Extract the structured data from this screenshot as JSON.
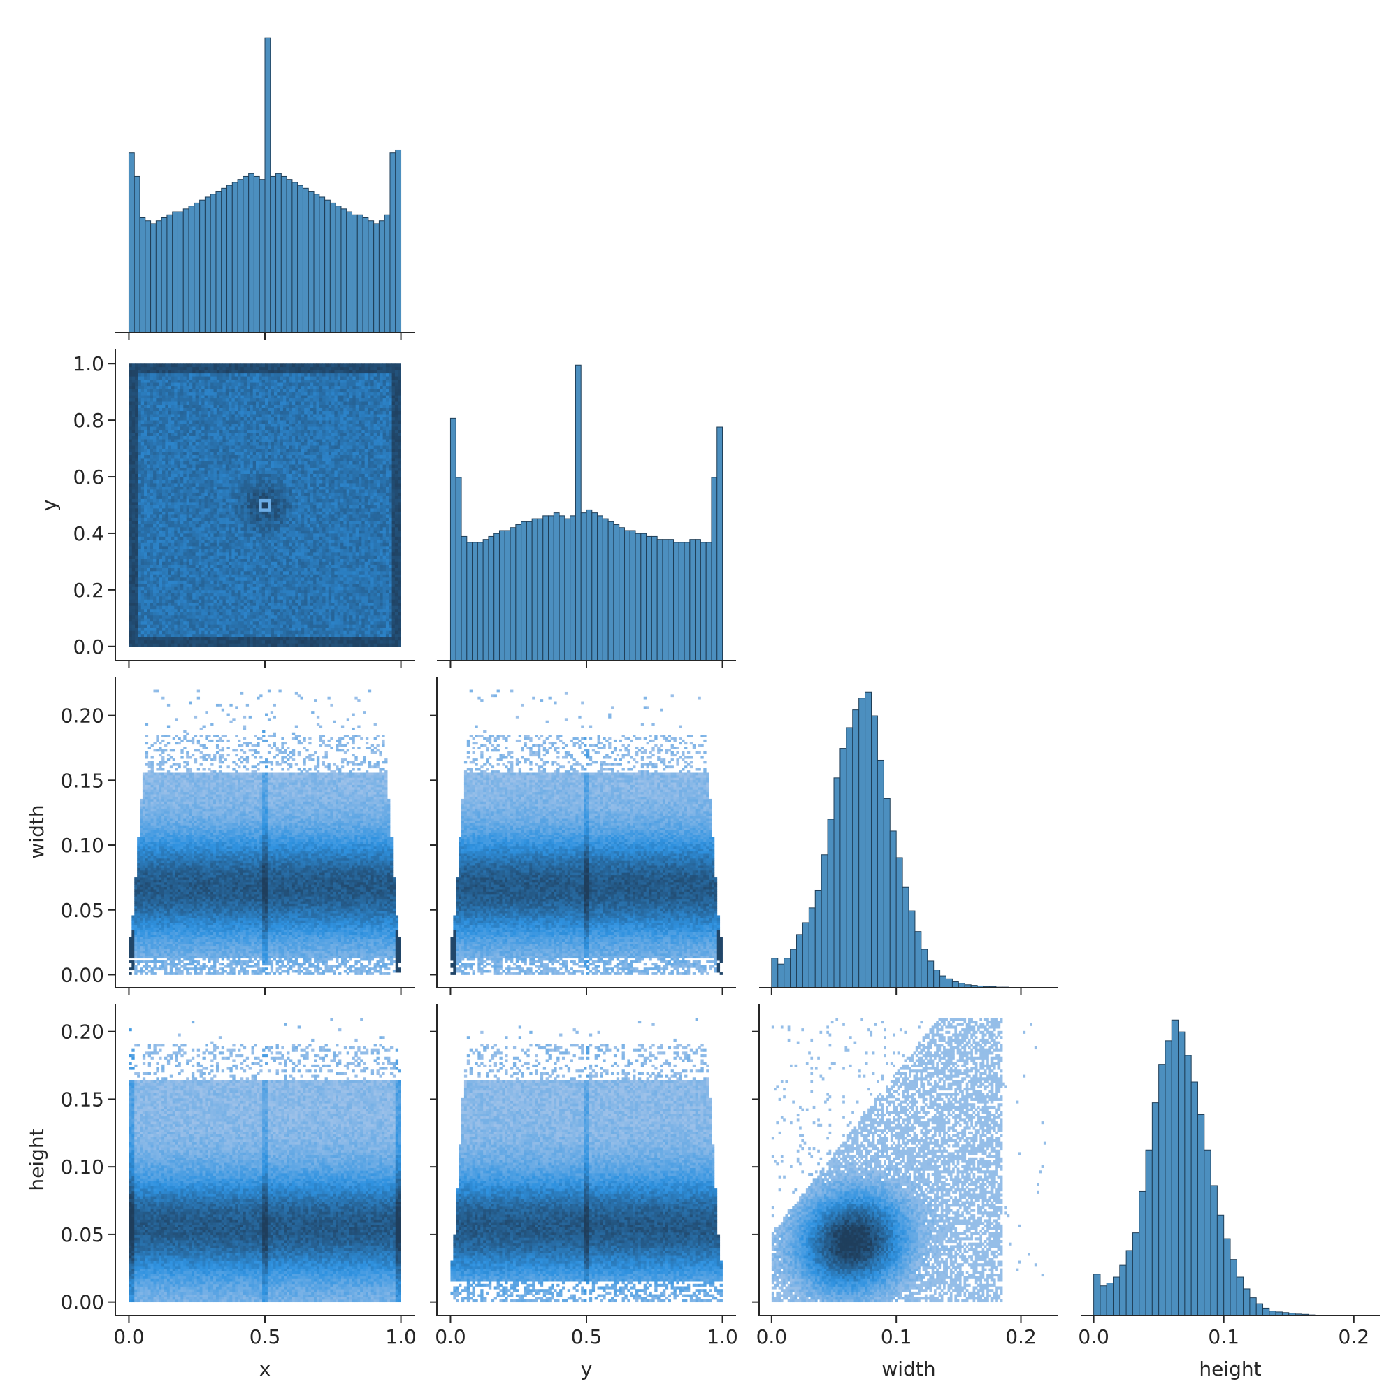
{
  "colors": {
    "bar_fill": "#4c8fbf",
    "bar_edge": "#1f3e57",
    "heat_light": "#a9c6ea",
    "heat_mid": "#2f92e0",
    "heat_dark": "#1f3e5c"
  },
  "chart_data": [
    {
      "id": "x-hist",
      "type": "bar",
      "row": 0,
      "col": 0,
      "variable": "x",
      "xlim": [
        -0.05,
        1.05
      ],
      "bins": [
        0.0,
        0.02,
        0.04,
        0.06,
        0.08,
        0.1,
        0.12,
        0.14,
        0.16,
        0.18,
        0.2,
        0.22,
        0.24,
        0.26,
        0.28,
        0.3,
        0.32,
        0.34,
        0.36,
        0.38,
        0.4,
        0.42,
        0.44,
        0.46,
        0.48,
        0.5,
        0.52,
        0.54,
        0.56,
        0.58,
        0.6,
        0.62,
        0.64,
        0.66,
        0.68,
        0.7,
        0.72,
        0.74,
        0.76,
        0.78,
        0.8,
        0.82,
        0.84,
        0.86,
        0.88,
        0.9,
        0.92,
        0.94,
        0.96,
        0.98,
        1.0
      ],
      "counts": [
        0.61,
        0.53,
        0.39,
        0.38,
        0.37,
        0.38,
        0.39,
        0.4,
        0.41,
        0.41,
        0.42,
        0.43,
        0.44,
        0.45,
        0.46,
        0.47,
        0.48,
        0.49,
        0.5,
        0.51,
        0.52,
        0.53,
        0.54,
        0.53,
        0.52,
        1.0,
        0.53,
        0.54,
        0.53,
        0.52,
        0.51,
        0.5,
        0.49,
        0.48,
        0.47,
        0.46,
        0.45,
        0.44,
        0.43,
        0.42,
        0.41,
        0.4,
        0.4,
        0.39,
        0.38,
        0.37,
        0.38,
        0.4,
        0.61,
        0.62
      ]
    },
    {
      "id": "y-hist",
      "type": "bar",
      "row": 1,
      "col": 1,
      "variable": "y",
      "xlim": [
        -0.05,
        1.05
      ],
      "bins": [
        0.0,
        0.02,
        0.04,
        0.06,
        0.08,
        0.1,
        0.12,
        0.14,
        0.16,
        0.18,
        0.2,
        0.22,
        0.24,
        0.26,
        0.28,
        0.3,
        0.32,
        0.34,
        0.36,
        0.38,
        0.4,
        0.42,
        0.44,
        0.46,
        0.48,
        0.5,
        0.52,
        0.54,
        0.56,
        0.58,
        0.6,
        0.62,
        0.64,
        0.66,
        0.68,
        0.7,
        0.72,
        0.74,
        0.76,
        0.78,
        0.8,
        0.82,
        0.84,
        0.86,
        0.88,
        0.9,
        0.92,
        0.94,
        0.96,
        0.98,
        1.0
      ],
      "counts": [
        0.82,
        0.62,
        0.42,
        0.4,
        0.4,
        0.4,
        0.41,
        0.42,
        0.43,
        0.44,
        0.44,
        0.45,
        0.46,
        0.47,
        0.47,
        0.48,
        0.48,
        0.49,
        0.49,
        0.5,
        0.49,
        0.48,
        0.49,
        1.0,
        0.5,
        0.51,
        0.5,
        0.49,
        0.48,
        0.47,
        0.46,
        0.45,
        0.44,
        0.44,
        0.43,
        0.43,
        0.42,
        0.42,
        0.41,
        0.41,
        0.41,
        0.4,
        0.4,
        0.4,
        0.41,
        0.41,
        0.4,
        0.4,
        0.62,
        0.79
      ]
    },
    {
      "id": "width-hist",
      "type": "bar",
      "row": 2,
      "col": 2,
      "variable": "width",
      "xlim": [
        -0.01,
        0.23
      ],
      "bins": [
        0.0,
        0.005,
        0.01,
        0.015,
        0.02,
        0.025,
        0.03,
        0.035,
        0.04,
        0.045,
        0.05,
        0.055,
        0.06,
        0.065,
        0.07,
        0.075,
        0.08,
        0.085,
        0.09,
        0.095,
        0.1,
        0.105,
        0.11,
        0.115,
        0.12,
        0.125,
        0.13,
        0.135,
        0.14,
        0.145,
        0.15,
        0.155,
        0.16,
        0.165,
        0.17,
        0.175,
        0.18,
        0.185,
        0.19
      ],
      "counts": [
        0.1,
        0.08,
        0.1,
        0.13,
        0.18,
        0.22,
        0.27,
        0.33,
        0.45,
        0.57,
        0.71,
        0.81,
        0.88,
        0.94,
        0.98,
        1.0,
        0.92,
        0.77,
        0.64,
        0.53,
        0.44,
        0.34,
        0.26,
        0.19,
        0.13,
        0.09,
        0.06,
        0.04,
        0.03,
        0.02,
        0.015,
        0.01,
        0.008,
        0.006,
        0.004,
        0.004,
        0.002,
        0.002,
        0.001
      ]
    },
    {
      "id": "height-hist",
      "type": "bar",
      "row": 3,
      "col": 3,
      "variable": "height",
      "xlim": [
        -0.01,
        0.22
      ],
      "bins": [
        0.0,
        0.005,
        0.01,
        0.015,
        0.02,
        0.025,
        0.03,
        0.035,
        0.04,
        0.045,
        0.05,
        0.055,
        0.06,
        0.065,
        0.07,
        0.075,
        0.08,
        0.085,
        0.09,
        0.095,
        0.1,
        0.105,
        0.11,
        0.115,
        0.12,
        0.125,
        0.13,
        0.135,
        0.14,
        0.145,
        0.15,
        0.155,
        0.16,
        0.165
      ],
      "counts": [
        0.14,
        0.1,
        0.11,
        0.13,
        0.17,
        0.22,
        0.28,
        0.42,
        0.56,
        0.72,
        0.85,
        0.93,
        1.0,
        0.96,
        0.88,
        0.79,
        0.68,
        0.56,
        0.44,
        0.34,
        0.26,
        0.19,
        0.13,
        0.09,
        0.06,
        0.04,
        0.025,
        0.015,
        0.012,
        0.01,
        0.008,
        0.005,
        0.004,
        0.002
      ]
    },
    {
      "id": "x-vs-y",
      "type": "heatmap",
      "row": 1,
      "col": 0,
      "x": "x",
      "y": "y",
      "xlim": [
        -0.05,
        1.05
      ],
      "ylim": [
        -0.05,
        1.05
      ]
    },
    {
      "id": "x-vs-width",
      "type": "heatmap",
      "row": 2,
      "col": 0,
      "x": "x",
      "y": "width",
      "xlim": [
        -0.05,
        1.05
      ],
      "ylim": [
        -0.01,
        0.23
      ]
    },
    {
      "id": "y-vs-width",
      "type": "heatmap",
      "row": 2,
      "col": 1,
      "x": "y",
      "y": "width",
      "xlim": [
        -0.05,
        1.05
      ],
      "ylim": [
        -0.01,
        0.23
      ]
    },
    {
      "id": "x-vs-height",
      "type": "heatmap",
      "row": 3,
      "col": 0,
      "x": "x",
      "y": "height",
      "xlim": [
        -0.05,
        1.05
      ],
      "ylim": [
        -0.01,
        0.22
      ]
    },
    {
      "id": "y-vs-height",
      "type": "heatmap",
      "row": 3,
      "col": 1,
      "x": "y",
      "y": "height",
      "xlim": [
        -0.05,
        1.05
      ],
      "ylim": [
        -0.01,
        0.22
      ]
    },
    {
      "id": "width-vs-height",
      "type": "heatmap",
      "row": 3,
      "col": 2,
      "x": "width",
      "y": "height",
      "xlim": [
        -0.01,
        0.23
      ],
      "ylim": [
        -0.01,
        0.22
      ]
    }
  ],
  "axes": {
    "x_labels": [
      "x",
      "y",
      "width",
      "height"
    ],
    "y_labels": [
      "y",
      "width",
      "height"
    ],
    "x_ticks_unit": [
      "0.0",
      "0.5",
      "1.0"
    ],
    "x_ticks_size": [
      "0.0",
      "0.1",
      "0.2"
    ],
    "y_ticks_unit": [
      "0.0",
      "0.2",
      "0.4",
      "0.6",
      "0.8",
      "1.0"
    ],
    "y_ticks_width": [
      "0.00",
      "0.05",
      "0.10",
      "0.15",
      "0.20"
    ],
    "y_ticks_height": [
      "0.00",
      "0.05",
      "0.10",
      "0.15",
      "0.20"
    ]
  }
}
